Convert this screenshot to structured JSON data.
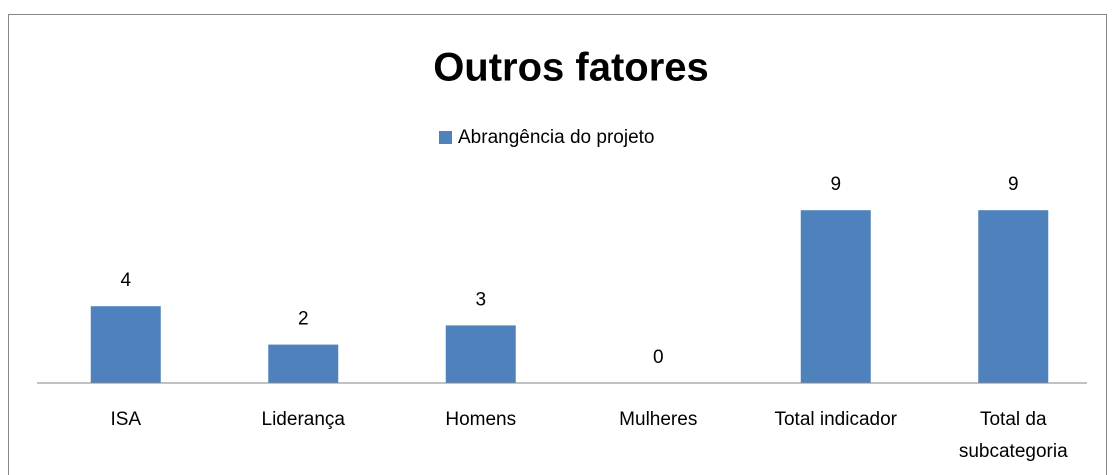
{
  "chart_data": {
    "type": "bar",
    "title": "Outros fatores",
    "categories": [
      "ISA",
      "Liderança",
      "Homens",
      "Mulheres",
      "Total indicador",
      "Total da subcategoria"
    ],
    "series": [
      {
        "name": "Abrangência do projeto",
        "color": "#4f81bd",
        "values": [
          4,
          2,
          3,
          0,
          9,
          9
        ]
      }
    ],
    "ylim": [
      0,
      10
    ],
    "legend": "top"
  }
}
